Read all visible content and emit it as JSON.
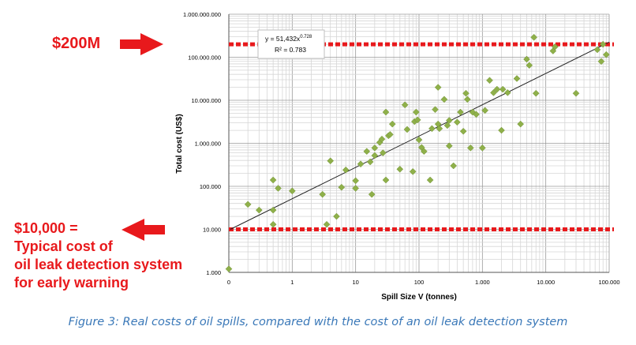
{
  "chart_data": {
    "type": "scatter",
    "title": "",
    "xlabel": "Spill Size V (tonnes)",
    "ylabel": "Total cost (US$)",
    "x_scale": "log",
    "y_scale": "log",
    "xlim": [
      0.1,
      100000
    ],
    "ylim": [
      1000,
      1000000000
    ],
    "x_tick_labels": [
      "0",
      "1",
      "10",
      "100",
      "1.000",
      "10.000",
      "100.000"
    ],
    "y_tick_labels": [
      "1.000",
      "10.000",
      "100.000",
      "1.000.000",
      "10.000.000",
      "100.000.000",
      "1.000.000.000"
    ],
    "grid": true,
    "trendline": {
      "type": "power",
      "a": 51432,
      "b": 0.728,
      "equation": "y = 51,432x",
      "exponent": "0.728",
      "r2_label": "R² = 0.783"
    },
    "thresholds": [
      {
        "y": 200000000,
        "color": "#e8191c"
      },
      {
        "y": 10000,
        "color": "#e8191c"
      }
    ],
    "marker_color": "#8fb04a",
    "points": [
      [
        0.1,
        1200
      ],
      [
        0.2,
        38000
      ],
      [
        0.3,
        28000
      ],
      [
        0.5,
        140000
      ],
      [
        0.5,
        28000
      ],
      [
        0.5,
        13000
      ],
      [
        0.6,
        90000
      ],
      [
        1,
        78000
      ],
      [
        3,
        65000
      ],
      [
        3.5,
        13000
      ],
      [
        4,
        390000
      ],
      [
        5,
        20000
      ],
      [
        6,
        95000
      ],
      [
        7,
        240000
      ],
      [
        10,
        90000
      ],
      [
        10,
        135000
      ],
      [
        12,
        330000
      ],
      [
        15,
        650000
      ],
      [
        17,
        370000
      ],
      [
        18,
        65000
      ],
      [
        20,
        520000
      ],
      [
        20,
        780000
      ],
      [
        24,
        1050000
      ],
      [
        26,
        1250000
      ],
      [
        27,
        600000
      ],
      [
        30,
        140000
      ],
      [
        30,
        5300000
      ],
      [
        33,
        1500000
      ],
      [
        35,
        1600000
      ],
      [
        38,
        2800000
      ],
      [
        50,
        250000
      ],
      [
        60,
        7800000
      ],
      [
        65,
        2100000
      ],
      [
        80,
        220000
      ],
      [
        85,
        3200000
      ],
      [
        90,
        5300000
      ],
      [
        95,
        3500000
      ],
      [
        100,
        1200000
      ],
      [
        110,
        800000
      ],
      [
        120,
        650000
      ],
      [
        150,
        140000
      ],
      [
        160,
        2200000
      ],
      [
        180,
        6100000
      ],
      [
        200,
        2800000
      ],
      [
        200,
        20000000
      ],
      [
        210,
        2200000
      ],
      [
        250,
        10500000
      ],
      [
        280,
        2600000
      ],
      [
        300,
        3400000
      ],
      [
        300,
        870000
      ],
      [
        350,
        300000
      ],
      [
        400,
        3100000
      ],
      [
        450,
        5300000
      ],
      [
        500,
        1900000
      ],
      [
        550,
        14500000
      ],
      [
        580,
        10500000
      ],
      [
        650,
        780000
      ],
      [
        700,
        5300000
      ],
      [
        800,
        4700000
      ],
      [
        1000,
        780000
      ],
      [
        1100,
        5800000
      ],
      [
        1300,
        29000000
      ],
      [
        1500,
        15000000
      ],
      [
        1700,
        18000000
      ],
      [
        2000,
        2000000
      ],
      [
        2100,
        18000000
      ],
      [
        2500,
        15000000
      ],
      [
        3500,
        32000000
      ],
      [
        4000,
        2800000
      ],
      [
        5000,
        90000000
      ],
      [
        5500,
        65000000
      ],
      [
        6500,
        290000000
      ],
      [
        7000,
        14500000
      ],
      [
        13000,
        140000000
      ],
      [
        14000,
        175000000
      ],
      [
        30000,
        14500000
      ],
      [
        65000,
        150000000
      ],
      [
        75000,
        80000000
      ],
      [
        80000,
        200000000
      ],
      [
        90000,
        115000000
      ]
    ]
  },
  "annotations": {
    "top_label": "$200M",
    "bottom_lines": [
      "$10,000 =",
      "Typical cost of",
      "oil leak detection system",
      "for early warning"
    ]
  },
  "caption": "Figure 3: Real costs of oil spills, compared with the cost of an oil leak detection system"
}
